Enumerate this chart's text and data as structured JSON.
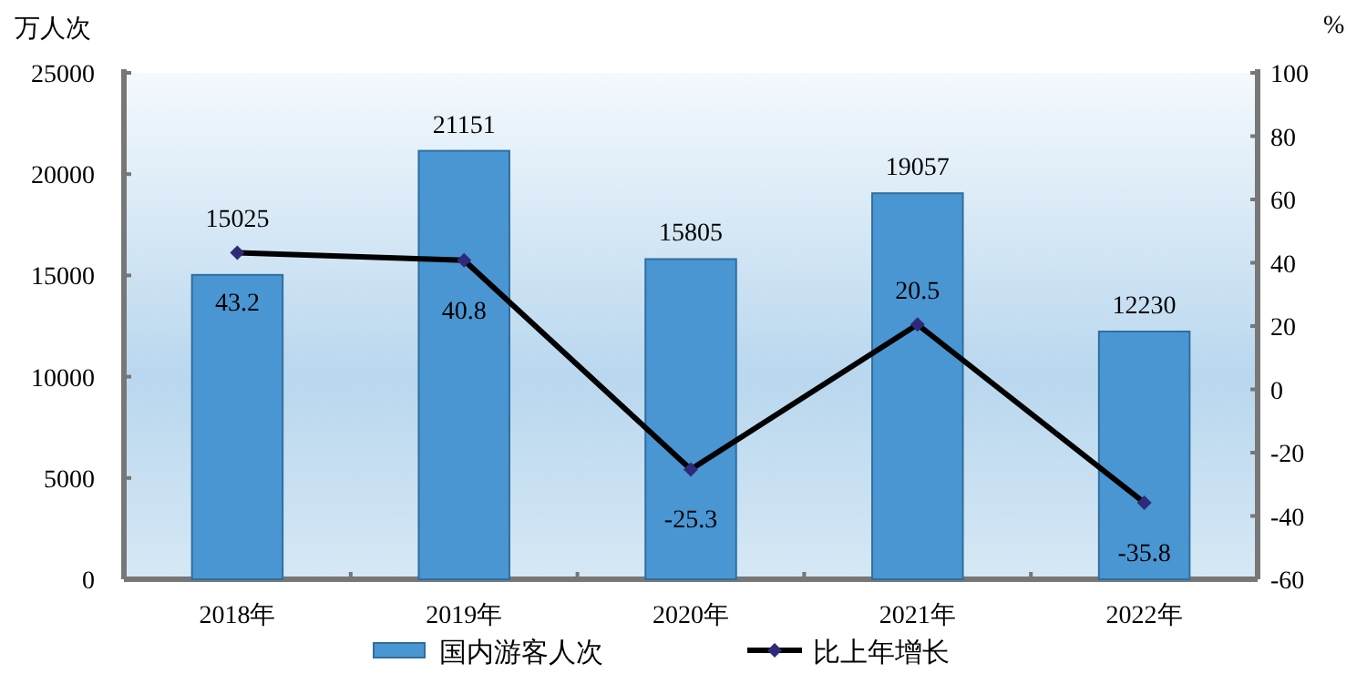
{
  "chart_data": {
    "type": "bar",
    "categories": [
      "2018年",
      "2019年",
      "2020年",
      "2021年",
      "2022年"
    ],
    "ylabel": "万人次",
    "y2label": "%",
    "ylim": [
      0,
      25000
    ],
    "yticks": [
      0,
      5000,
      10000,
      15000,
      20000,
      25000
    ],
    "y2lim": [
      -60,
      100
    ],
    "y2ticks": [
      -60,
      -40,
      -20,
      0,
      20,
      40,
      60,
      80,
      100
    ],
    "legend": "bottom",
    "grid": false,
    "data_labels": true,
    "series": [
      {
        "name": "国内游客人次",
        "color": "#4a96d2",
        "values": [
          15025,
          21151,
          15805,
          19057,
          12230
        ]
      },
      {
        "name": "比上年增长",
        "type": "line",
        "axis": "y2",
        "color": "#000000",
        "marker": "diamond",
        "values": [
          43.2,
          40.8,
          -25.3,
          20.5,
          -35.8
        ]
      }
    ]
  }
}
